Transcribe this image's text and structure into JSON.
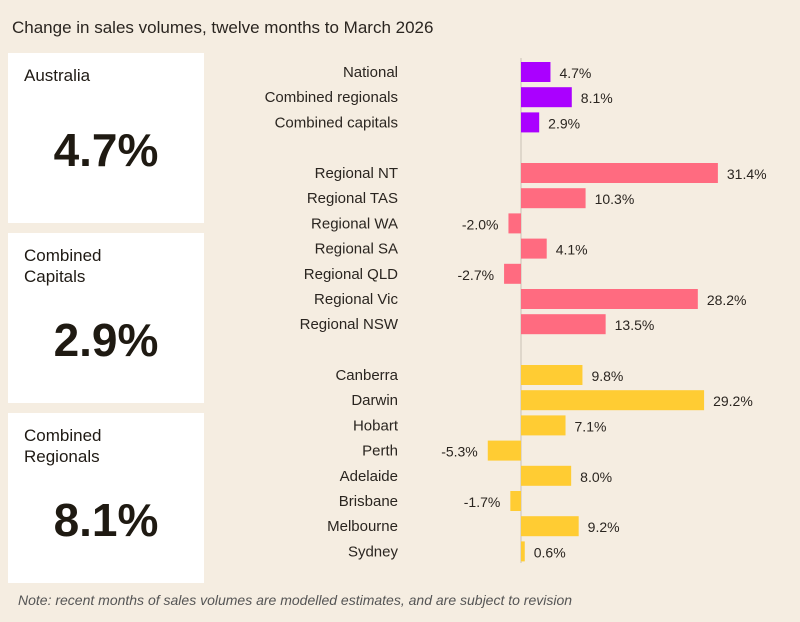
{
  "title": "Change in sales volumes, twelve months to March 2026",
  "cards": [
    {
      "label": "Australia",
      "value": "4.7%"
    },
    {
      "label": "Combined\nCapitals",
      "value": "2.9%"
    },
    {
      "label": "Combined\nRegionals",
      "value": "8.1%"
    }
  ],
  "note": "Note: recent months of sales volumes are modelled estimates, and are subject to revision",
  "chart_data": {
    "type": "bar",
    "orientation": "horizontal",
    "unit": "%",
    "colors": {
      "aggregates": "#aa00ff",
      "regional": "#ff6b80",
      "capitals": "#ffcc33"
    },
    "groups": [
      {
        "key": "aggregates",
        "categories": [
          "National",
          "Combined regionals",
          "Combined capitals"
        ],
        "values": [
          4.7,
          8.1,
          2.9
        ]
      },
      {
        "key": "regional",
        "categories": [
          "Regional NT",
          "Regional TAS",
          "Regional WA",
          "Regional SA",
          "Regional QLD",
          "Regional Vic",
          "Regional NSW"
        ],
        "values": [
          31.4,
          10.3,
          -2.0,
          4.1,
          -2.7,
          28.2,
          13.5
        ]
      },
      {
        "key": "capitals",
        "categories": [
          "Canberra",
          "Darwin",
          "Hobart",
          "Perth",
          "Adelaide",
          "Brisbane",
          "Melbourne",
          "Sydney"
        ],
        "values": [
          9.8,
          29.2,
          7.1,
          -5.3,
          8.0,
          -1.7,
          9.2,
          0.6
        ]
      }
    ]
  }
}
